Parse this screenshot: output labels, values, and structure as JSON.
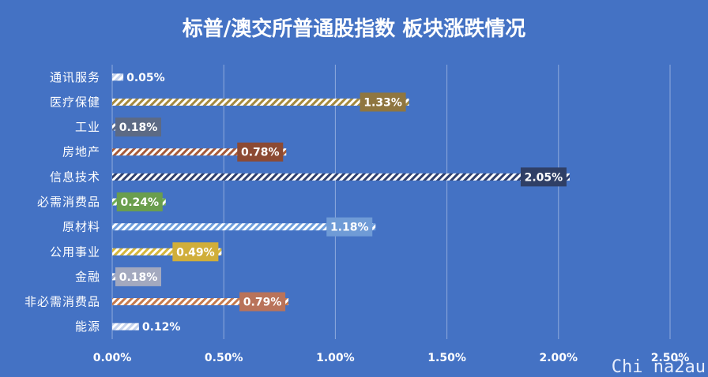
{
  "chart_data": {
    "type": "bar",
    "orientation": "horizontal",
    "title": "标普/澳交所普通股指数 板块涨跌情况",
    "categories": [
      "通讯服务",
      "医疗保健",
      "工业",
      "房地产",
      "信息技术",
      "必需消费品",
      "原材料",
      "公用事业",
      "金融",
      "非必需消费品",
      "能源"
    ],
    "values": [
      0.05,
      1.33,
      0.18,
      0.78,
      2.05,
      0.24,
      1.18,
      0.49,
      0.18,
      0.79,
      0.12
    ],
    "data_labels": [
      "0.05%",
      "1.33%",
      "0.18%",
      "0.78%",
      "2.05%",
      "0.24%",
      "1.18%",
      "0.49%",
      "0.18%",
      "0.79%",
      "0.12%"
    ],
    "colors": [
      "#C6D4EE",
      "#A58A3E",
      "#5A6A8A",
      "#A65A3A",
      "#2F4070",
      "#6FAE55",
      "#6F9FDD",
      "#D6B73C",
      "#9BA8C8",
      "#C57A4E",
      "#C6D4EE"
    ],
    "label_colors": [
      null,
      "#8F7640",
      "#5C6A85",
      "#8C4A33",
      "#2F3F66",
      "#6A9E4E",
      "#6F9BD6",
      "#D0AE3A",
      "#A3A9BF",
      "#B9735A",
      null
    ],
    "xlim": [
      0,
      2.5
    ],
    "x_ticks": [
      0,
      0.5,
      1.0,
      1.5,
      2.0,
      2.5
    ],
    "x_tick_labels": [
      "0.00%",
      "0.50%",
      "1.00%",
      "1.50%",
      "2.00%",
      "2.50%"
    ],
    "xlabel": "",
    "ylabel": "",
    "grid": true,
    "legend": "none"
  },
  "watermark": "Chi na2au",
  "colors": {
    "background": "#4472C4",
    "gridline": "#8FAADC"
  }
}
